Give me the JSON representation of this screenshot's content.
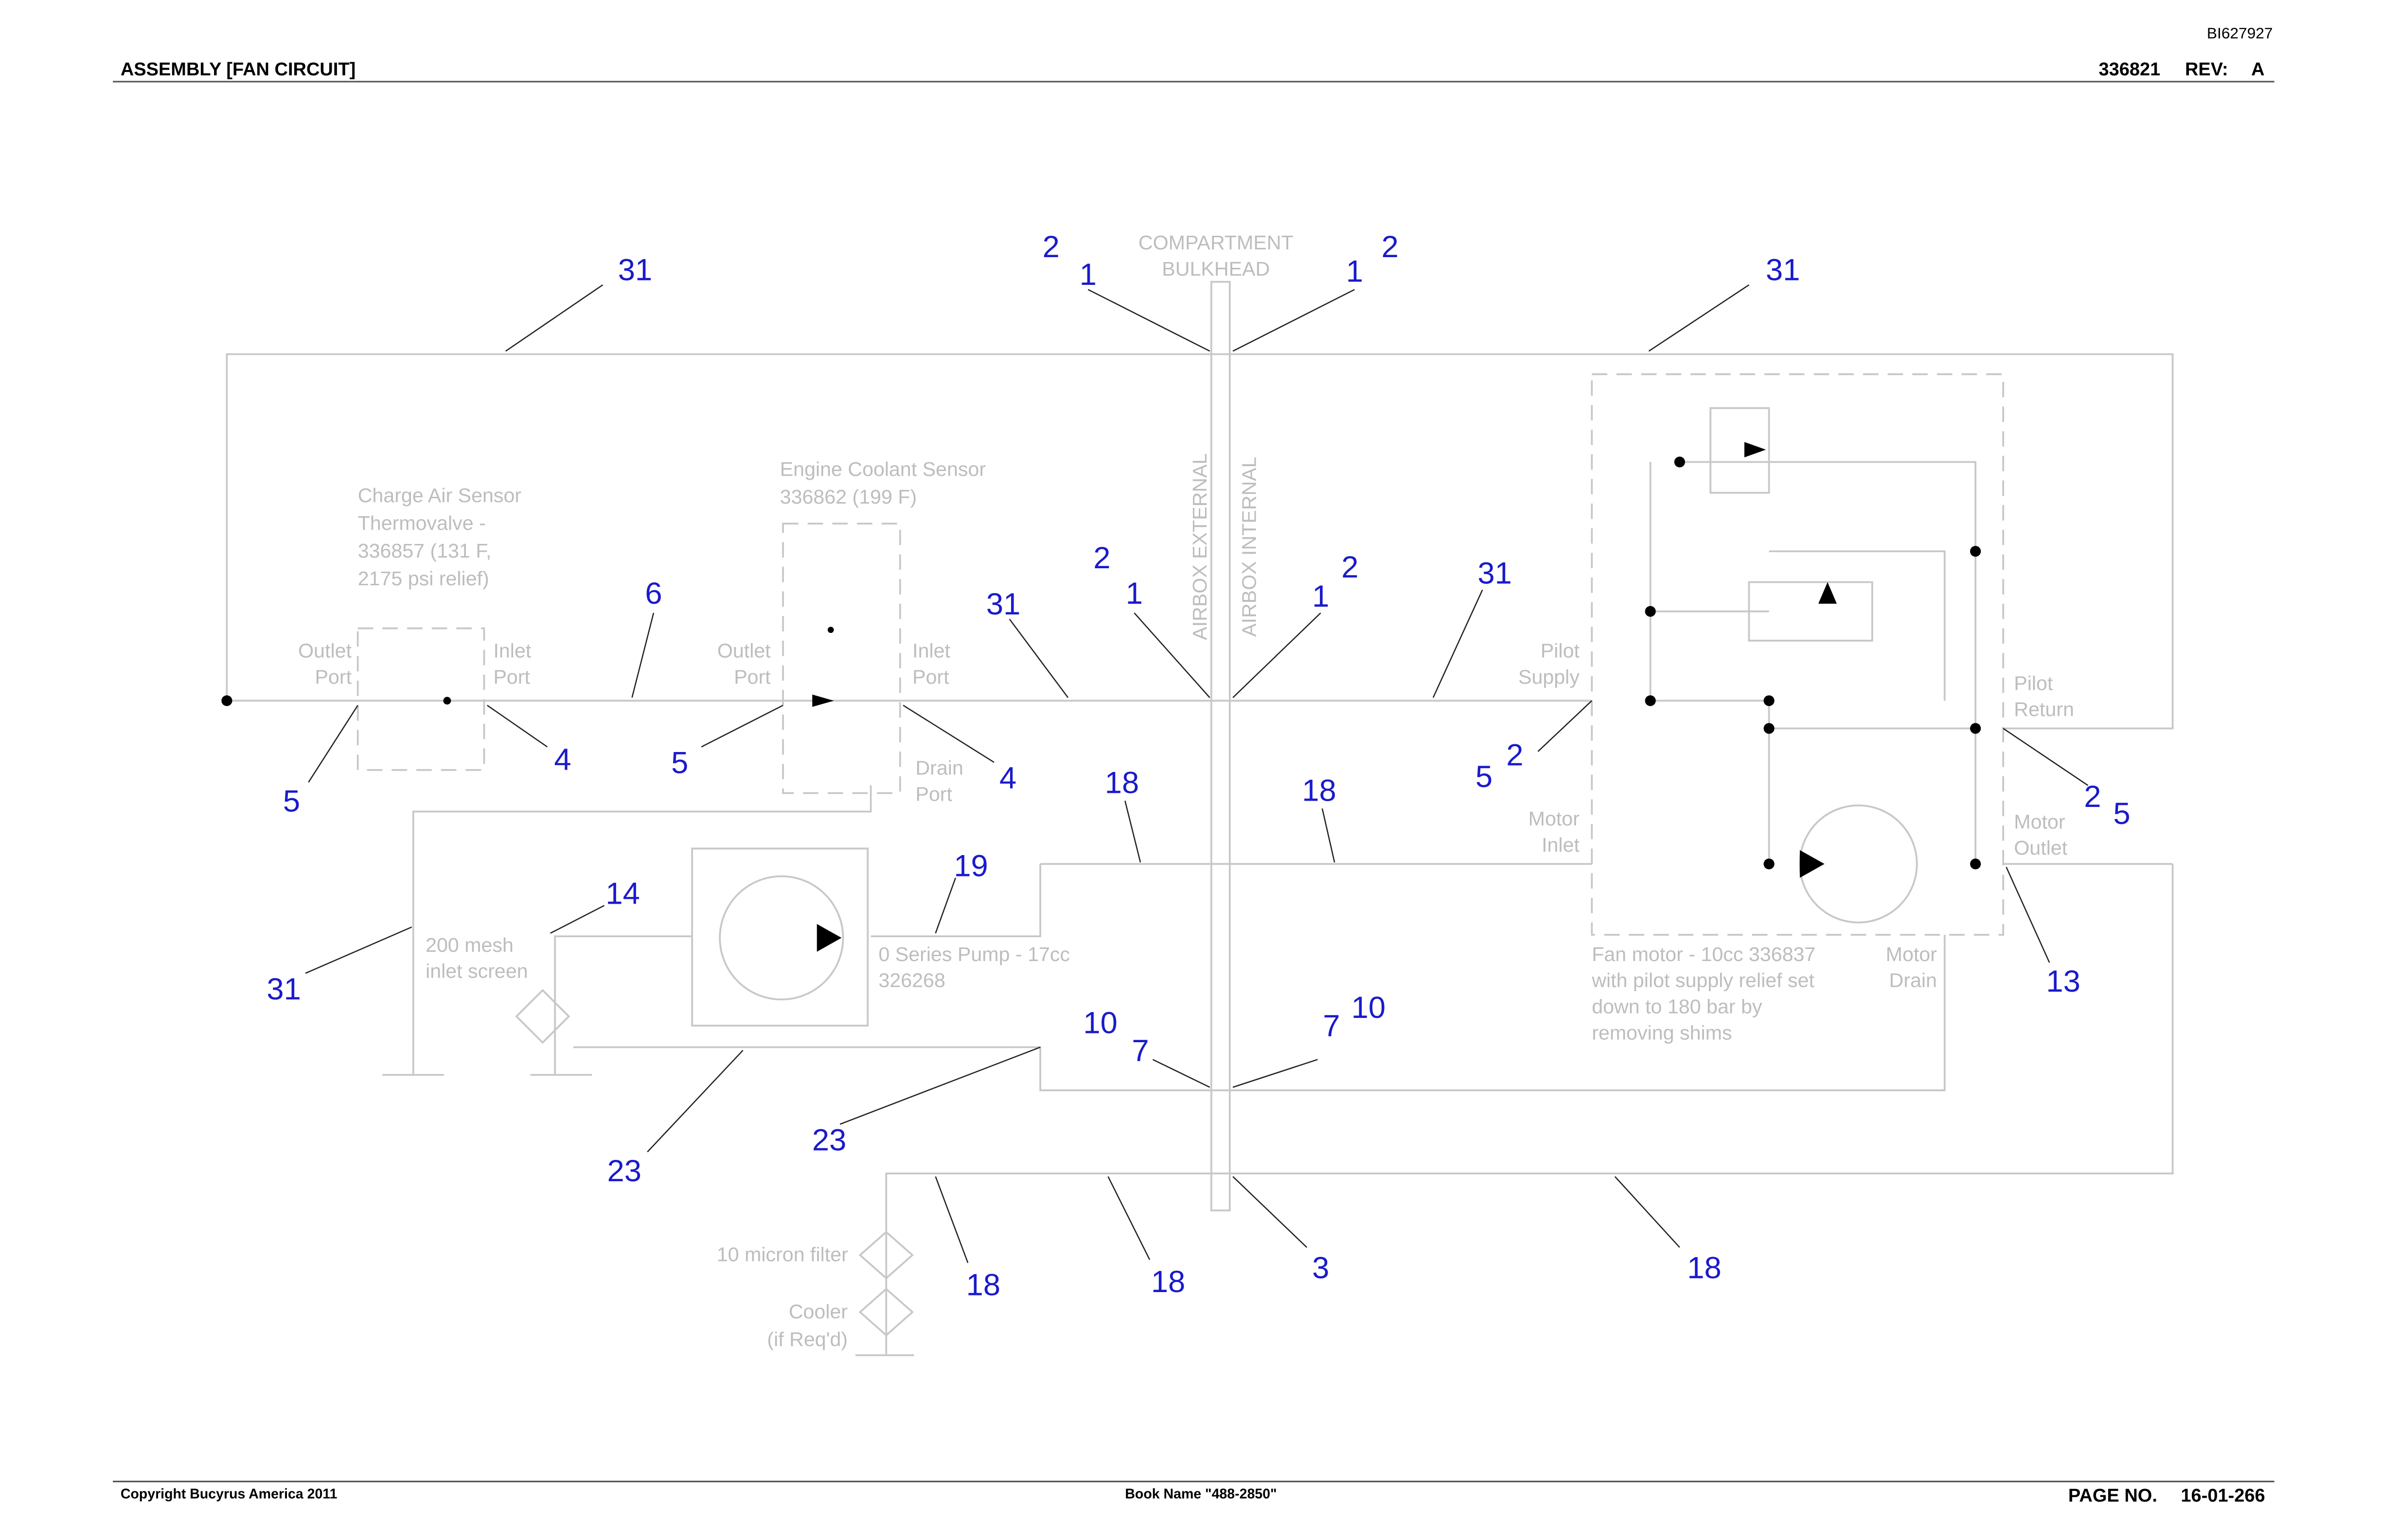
{
  "header": {
    "doc_id": "BI627927",
    "title": "ASSEMBLY [FAN CIRCUIT]",
    "part_number": "336821",
    "rev_label": "REV:",
    "rev": "A"
  },
  "labels": [
    {
      "lines": [
        "COMPARTMENT",
        "BULKHEAD"
      ]
    },
    {
      "lines": [
        "Charge Air Sensor",
        "Thermovalve -",
        "336857 (131 F,",
        "2175 psi relief)"
      ]
    },
    {
      "lines": [
        "Engine Coolant Sensor",
        "336862 (199 F)"
      ]
    },
    {
      "lines": [
        "Outlet",
        "Port"
      ]
    },
    {
      "lines": [
        "Inlet",
        "Port"
      ]
    },
    {
      "lines": [
        "Outlet",
        "Port"
      ]
    },
    {
      "lines": [
        "Inlet",
        "Port"
      ]
    },
    {
      "lines": [
        "Drain",
        "Port"
      ]
    },
    {
      "lines": [
        "AIRBOX EXTERNAL"
      ]
    },
    {
      "lines": [
        "AIRBOX INTERNAL"
      ]
    },
    {
      "lines": [
        "Pilot",
        "Supply"
      ]
    },
    {
      "lines": [
        "Pilot",
        "Return"
      ]
    },
    {
      "lines": [
        "Motor",
        "Inlet"
      ]
    },
    {
      "lines": [
        "Motor",
        "Outlet"
      ]
    },
    {
      "lines": [
        "Fan motor - 10cc 336837",
        "with pilot supply relief set",
        "down to 180 bar by",
        "removing shims"
      ]
    },
    {
      "lines": [
        "Motor",
        "Drain"
      ]
    },
    {
      "lines": [
        "200 mesh",
        "inlet screen"
      ]
    },
    {
      "lines": [
        "0 Series Pump - 17cc",
        "326268"
      ]
    },
    {
      "lines": [
        "10 micron filter"
      ]
    },
    {
      "lines": [
        "Cooler",
        "(if Req'd)"
      ]
    }
  ],
  "callouts": [
    "31",
    "2",
    "1",
    "1",
    "2",
    "31",
    "6",
    "2",
    "1",
    "31",
    "1",
    "2",
    "31",
    "5",
    "4",
    "5",
    "4",
    "18",
    "18",
    "5",
    "2",
    "2",
    "5",
    "19",
    "14",
    "31",
    "13",
    "10",
    "7",
    "7",
    "10",
    "23",
    "23",
    "18",
    "18",
    "3",
    "18"
  ],
  "footer": {
    "copyright": "Copyright Bucyrus America 2011",
    "book": "Book Name \"488-2850\"",
    "page_label": "PAGE NO.",
    "page_number": "16-01-266"
  }
}
